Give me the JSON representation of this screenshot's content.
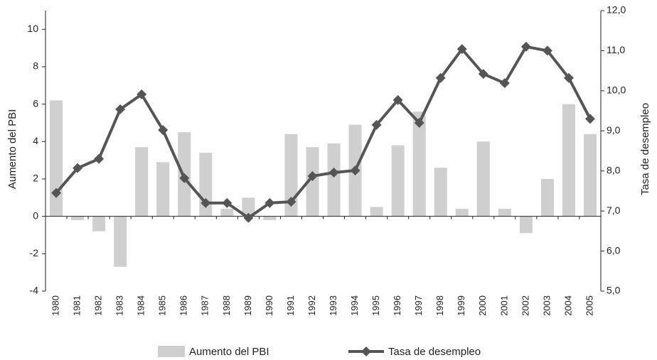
{
  "chart_data": {
    "type": "bar-line",
    "categories": [
      "1980",
      "1981",
      "1982",
      "1983",
      "1984",
      "1985",
      "1986",
      "1987",
      "1988",
      "1989",
      "1990",
      "1991",
      "1992",
      "1993",
      "1994",
      "1995",
      "1996",
      "1997",
      "1998",
      "1999",
      "2000",
      "2001",
      "2002",
      "2003",
      "2004",
      "2005"
    ],
    "series": [
      {
        "name": "Aumento del PBI",
        "type": "bar",
        "color": "#cfcfcf",
        "values": [
          6.2,
          -0.2,
          -0.8,
          -2.7,
          3.7,
          2.9,
          4.5,
          3.4,
          0.4,
          1.0,
          -0.2,
          4.4,
          3.7,
          3.9,
          4.9,
          0.5,
          3.8,
          5.6,
          2.6,
          0.4,
          4.0,
          0.4,
          -0.9,
          2.0,
          6.0,
          4.4
        ]
      },
      {
        "name": "Tasa de desempleo",
        "type": "line",
        "axis": "y2",
        "color": "#555555",
        "values": [
          7.45,
          8.07,
          8.3,
          9.54,
          9.91,
          9.02,
          7.82,
          7.2,
          7.2,
          6.83,
          7.2,
          7.23,
          7.87,
          7.96,
          8.01,
          9.15,
          9.77,
          9.2,
          10.32,
          11.04,
          10.42,
          10.19,
          11.1,
          11.0,
          10.32,
          9.3
        ]
      }
    ],
    "ylabel": "Aumento del PBI",
    "y2label": "Tasa de desempleo",
    "ylim": [
      -4,
      11
    ],
    "yticks": [
      -4,
      -2,
      0,
      2,
      4,
      6,
      8,
      10
    ],
    "y2lim": [
      5,
      12
    ],
    "y2ticks": [
      {
        "value": 5,
        "label": "5,0"
      },
      {
        "value": 6,
        "label": "6,0"
      },
      {
        "value": 7,
        "label": "7,0"
      },
      {
        "value": 8,
        "label": "8,0"
      },
      {
        "value": 9,
        "label": "9,0"
      },
      {
        "value": 10,
        "label": "10,0"
      },
      {
        "value": 11,
        "label": "11,0"
      },
      {
        "value": 12,
        "label": "12,0"
      }
    ],
    "grid": false,
    "legend": "bottom"
  }
}
